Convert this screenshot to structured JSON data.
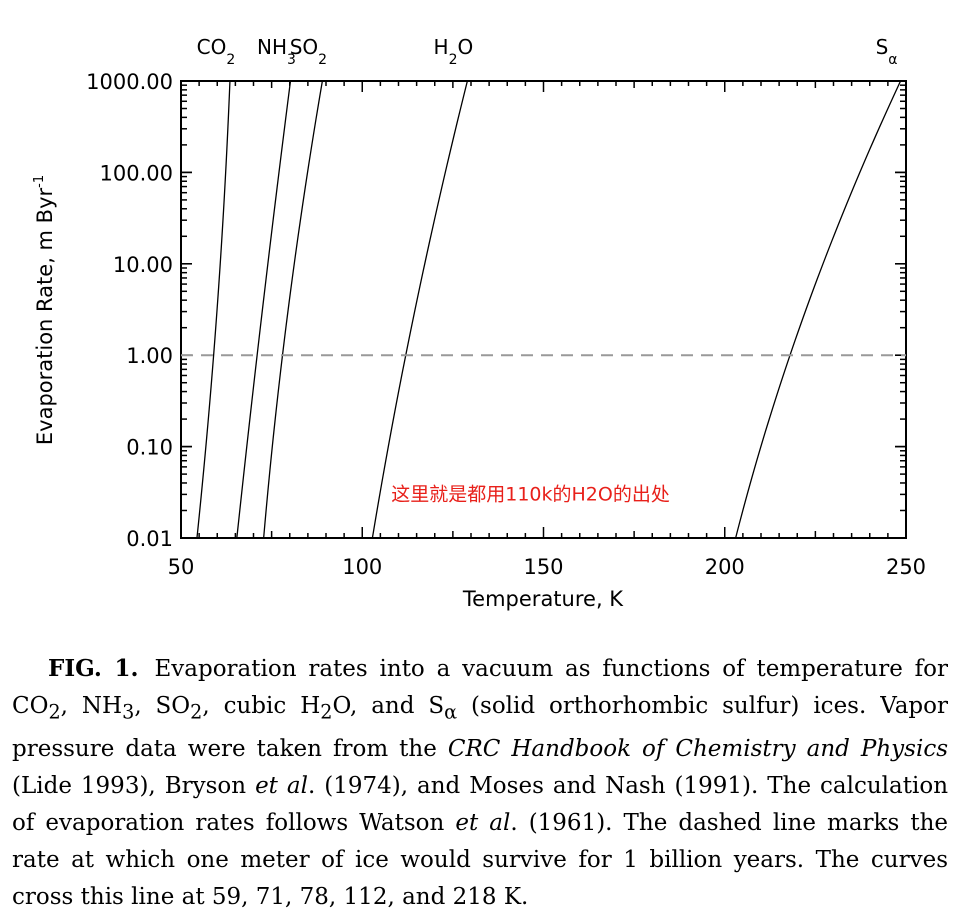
{
  "chart_data": {
    "type": "line",
    "title": "",
    "xlabel": "Temperature, K",
    "ylabel": "Evaporation Rate, m Byr",
    "ylabel_superscript": "-1",
    "xlim": [
      50,
      250
    ],
    "ylim": [
      0.01,
      1000
    ],
    "y_scale": "log",
    "x_ticks": [
      "50",
      "100",
      "150",
      "200",
      "250"
    ],
    "y_ticks": [
      "0.01",
      "0.10",
      "1.00",
      "10.00",
      "100.00",
      "1000.00"
    ],
    "series": [
      {
        "name": "CO",
        "subscript": "2",
        "x0": 54.4,
        "x1": 63.5,
        "x_at_1": 59
      },
      {
        "name": "NH",
        "subscript": "3",
        "x0": 65.4,
        "x1": 80.2,
        "x_at_1": 71
      },
      {
        "name": "SO",
        "subscript": "2",
        "x0": 72.8,
        "x1": 89.0,
        "x_at_1": 78
      },
      {
        "name": "H",
        "subscript": "2",
        "name_suffix": "O",
        "x0": 102.8,
        "x1": 129.0,
        "x_at_1": 112
      },
      {
        "name": "S",
        "subscript": "α",
        "x0": 203.0,
        "x1": 248.5,
        "x_at_1": 218
      }
    ],
    "reference_line": {
      "y": 1.0,
      "style": "dashed",
      "color": "#999999"
    },
    "annotation": {
      "text": "这里就是都用110k的H2O的出处",
      "color": "#e8201a",
      "x": 108,
      "y": 0.03
    }
  },
  "caption": {
    "fig_label": "FIG. 1.",
    "p1": "Evaporation rates into a vacuum as functions of temperature for CO",
    "p1_sub": "2",
    "p2": ", NH",
    "p2_sub": "3",
    "p3": ", SO",
    "p3_sub": "2",
    "p4": ", cubic H",
    "p4_sub": "2",
    "p5": "O, and S",
    "p5_sub": "α",
    "p6": " (solid orthorhombic sulfur) ices. Vapor pressure data were taken from the ",
    "p6_italic": "CRC Handbook of Chemistry and Physics",
    "p7": " (Lide 1993), Bryson ",
    "p7_italic": "et al",
    "p8": ". (1974), and Moses and Nash (1991). The calculation of evaporation rates follows Watson ",
    "p8_italic": "et al",
    "p9": ". (1961). The dashed line marks the rate at which one meter of ice would survive for 1 billion years. The curves cross this line at 59, 71, 78, 112, and 218 K."
  }
}
